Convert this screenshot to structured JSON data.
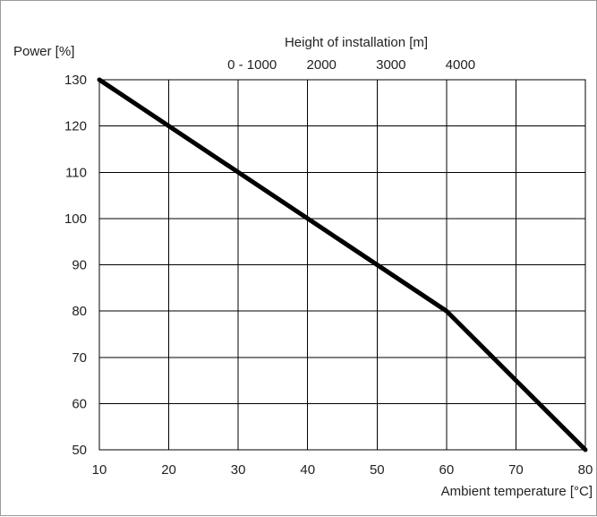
{
  "chart_data": {
    "type": "line",
    "ylabel": "Power [%]",
    "xlabel": "Ambient temperature [°C]",
    "secondary_xlabel": "Height of installation [m]",
    "x_ticks": [
      10,
      20,
      30,
      40,
      50,
      60,
      70,
      80
    ],
    "y_ticks": [
      50,
      60,
      70,
      80,
      90,
      100,
      110,
      120,
      130
    ],
    "xlim": [
      10,
      80
    ],
    "ylim": [
      50,
      130
    ],
    "secondary_ticks": [
      {
        "label": "0 - 1000",
        "x": 32
      },
      {
        "label": "2000",
        "x": 42
      },
      {
        "label": "3000",
        "x": 52
      },
      {
        "label": "4000",
        "x": 62
      }
    ],
    "series": [
      {
        "x": [
          10,
          60,
          80
        ],
        "y": [
          130,
          80,
          50
        ]
      }
    ],
    "grid": true,
    "legend": "none",
    "line_color": "#000000"
  }
}
